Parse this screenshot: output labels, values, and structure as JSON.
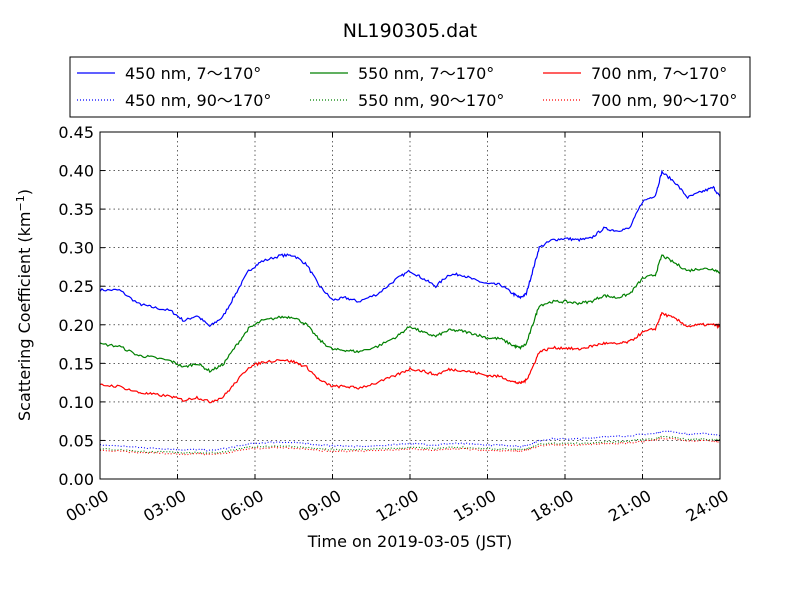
{
  "chart_data": {
    "type": "line",
    "title": "NL190305.dat",
    "xlabel": "Time on 2019-03-05 (JST)",
    "ylabel": "Scattering Coefficient (km",
    "ylabel_sup": "−1",
    "ylabel_close": ")",
    "x_unit": "hours since 00:00",
    "xlim": [
      0,
      24
    ],
    "ylim": [
      0,
      0.45
    ],
    "grid": true,
    "legend_position": "top",
    "x_ticks": [
      0,
      3,
      6,
      9,
      12,
      15,
      18,
      21,
      24
    ],
    "x_tick_labels": [
      "00:00",
      "03:00",
      "06:00",
      "09:00",
      "12:00",
      "15:00",
      "18:00",
      "21:00",
      "24:00"
    ],
    "y_ticks": [
      0,
      0.05,
      0.1,
      0.15,
      0.2,
      0.25,
      0.3,
      0.35,
      0.4,
      0.45
    ],
    "y_tick_labels": [
      "0.00",
      "0.05",
      "0.10",
      "0.15",
      "0.20",
      "0.25",
      "0.30",
      "0.35",
      "0.40",
      "0.45"
    ],
    "x": [
      0,
      0.75,
      1.5,
      2,
      2.75,
      3.25,
      3.75,
      4.25,
      4.75,
      5.25,
      5.75,
      6.25,
      7,
      7.5,
      8,
      8.5,
      9,
      9.5,
      10,
      10.75,
      11.5,
      12,
      12.5,
      13,
      13.5,
      14,
      14.5,
      15,
      15.5,
      16,
      16.25,
      16.5,
      16.75,
      17,
      17.5,
      18,
      18.5,
      19,
      19.5,
      20,
      20.5,
      21,
      21.5,
      21.75,
      22.25,
      22.75,
      23.25,
      23.75,
      24
    ],
    "series": [
      {
        "name": "450 nm, 7～170°",
        "color": "#0000ff",
        "style": "solid",
        "values": [
          0.245,
          0.245,
          0.227,
          0.223,
          0.218,
          0.205,
          0.212,
          0.198,
          0.21,
          0.24,
          0.27,
          0.282,
          0.29,
          0.29,
          0.278,
          0.25,
          0.232,
          0.235,
          0.23,
          0.24,
          0.26,
          0.27,
          0.26,
          0.25,
          0.265,
          0.265,
          0.258,
          0.253,
          0.252,
          0.24,
          0.235,
          0.24,
          0.27,
          0.3,
          0.31,
          0.312,
          0.31,
          0.312,
          0.325,
          0.322,
          0.325,
          0.36,
          0.368,
          0.398,
          0.385,
          0.365,
          0.372,
          0.378,
          0.366
        ]
      },
      {
        "name": "450 nm, 90～170°",
        "color": "#0000ff",
        "style": "dotted",
        "values": [
          0.044,
          0.043,
          0.041,
          0.04,
          0.039,
          0.038,
          0.038,
          0.037,
          0.039,
          0.042,
          0.045,
          0.047,
          0.048,
          0.047,
          0.046,
          0.044,
          0.043,
          0.043,
          0.042,
          0.043,
          0.045,
          0.046,
          0.045,
          0.044,
          0.046,
          0.046,
          0.045,
          0.044,
          0.044,
          0.043,
          0.042,
          0.043,
          0.046,
          0.05,
          0.052,
          0.052,
          0.052,
          0.053,
          0.055,
          0.055,
          0.056,
          0.058,
          0.059,
          0.062,
          0.061,
          0.058,
          0.059,
          0.058,
          0.057
        ]
      },
      {
        "name": "550 nm, 7～170°",
        "color": "#008000",
        "style": "solid",
        "values": [
          0.175,
          0.172,
          0.16,
          0.158,
          0.153,
          0.145,
          0.15,
          0.14,
          0.148,
          0.172,
          0.195,
          0.205,
          0.21,
          0.21,
          0.2,
          0.18,
          0.168,
          0.167,
          0.165,
          0.172,
          0.185,
          0.198,
          0.19,
          0.185,
          0.193,
          0.192,
          0.188,
          0.183,
          0.182,
          0.173,
          0.17,
          0.175,
          0.2,
          0.225,
          0.23,
          0.23,
          0.228,
          0.23,
          0.238,
          0.235,
          0.24,
          0.26,
          0.265,
          0.29,
          0.28,
          0.27,
          0.273,
          0.272,
          0.268
        ]
      },
      {
        "name": "550 nm, 90～170°",
        "color": "#008000",
        "style": "dotted",
        "values": [
          0.039,
          0.038,
          0.036,
          0.035,
          0.035,
          0.034,
          0.034,
          0.034,
          0.035,
          0.038,
          0.041,
          0.042,
          0.043,
          0.042,
          0.041,
          0.039,
          0.038,
          0.038,
          0.038,
          0.039,
          0.04,
          0.041,
          0.04,
          0.039,
          0.041,
          0.041,
          0.04,
          0.039,
          0.039,
          0.038,
          0.038,
          0.039,
          0.042,
          0.045,
          0.046,
          0.046,
          0.046,
          0.047,
          0.048,
          0.048,
          0.049,
          0.051,
          0.052,
          0.055,
          0.054,
          0.051,
          0.052,
          0.051,
          0.05
        ]
      },
      {
        "name": "700 nm, 7～170°",
        "color": "#ff0000",
        "style": "solid",
        "values": [
          0.122,
          0.12,
          0.112,
          0.11,
          0.107,
          0.102,
          0.106,
          0.1,
          0.106,
          0.125,
          0.145,
          0.151,
          0.155,
          0.152,
          0.145,
          0.128,
          0.12,
          0.12,
          0.118,
          0.125,
          0.135,
          0.143,
          0.14,
          0.135,
          0.142,
          0.141,
          0.138,
          0.134,
          0.133,
          0.126,
          0.124,
          0.128,
          0.145,
          0.165,
          0.17,
          0.17,
          0.168,
          0.172,
          0.176,
          0.175,
          0.178,
          0.19,
          0.195,
          0.215,
          0.208,
          0.198,
          0.2,
          0.2,
          0.198
        ]
      },
      {
        "name": "700 nm, 90～170°",
        "color": "#ff0000",
        "style": "dotted",
        "values": [
          0.037,
          0.036,
          0.034,
          0.034,
          0.033,
          0.032,
          0.033,
          0.032,
          0.033,
          0.036,
          0.039,
          0.04,
          0.041,
          0.04,
          0.039,
          0.037,
          0.036,
          0.036,
          0.036,
          0.037,
          0.038,
          0.039,
          0.038,
          0.037,
          0.039,
          0.039,
          0.038,
          0.037,
          0.037,
          0.036,
          0.036,
          0.037,
          0.04,
          0.043,
          0.044,
          0.044,
          0.044,
          0.045,
          0.046,
          0.046,
          0.047,
          0.049,
          0.05,
          0.053,
          0.052,
          0.049,
          0.05,
          0.049,
          0.048
        ]
      }
    ]
  }
}
